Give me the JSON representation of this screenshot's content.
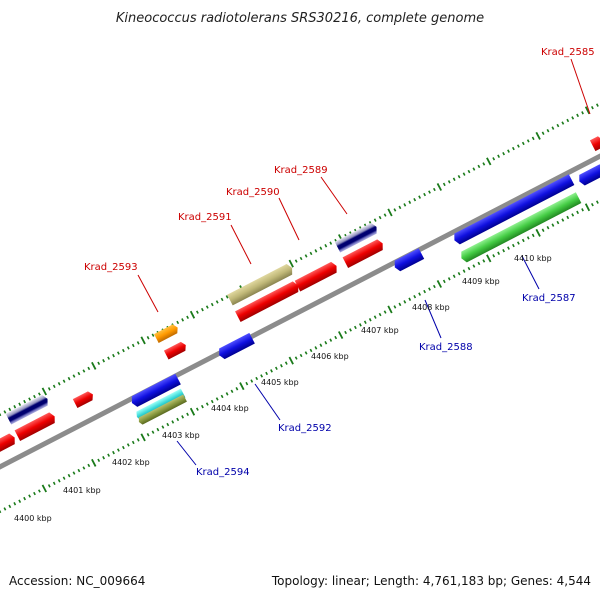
{
  "title": "Kineococcus radiotolerans SRS30216, complete genome",
  "footer": {
    "accession": "Accession: NC_009664",
    "summary": "Topology: linear; Length: 4,761,183 bp; Genes: 4,544"
  },
  "colors": {
    "forward_label": "#cc0000",
    "reverse_label": "#0000aa",
    "backbone": "#8c8c8c",
    "tick": "#1a7a1a"
  },
  "scale_labels": [
    "4400 kbp",
    "4401 kbp",
    "4402 kbp",
    "4403 kbp",
    "4404 kbp",
    "4405 kbp",
    "4406 kbp",
    "4407 kbp",
    "4408 kbp",
    "4409 kbp",
    "4410 kbp"
  ],
  "gene_labels": [
    "Krad_2585",
    "Krad_2589",
    "Krad_2590",
    "Krad_2591",
    "Krad_2593",
    "Krad_2588",
    "Krad_2587",
    "Krad_2592",
    "Krad_2594"
  ]
}
